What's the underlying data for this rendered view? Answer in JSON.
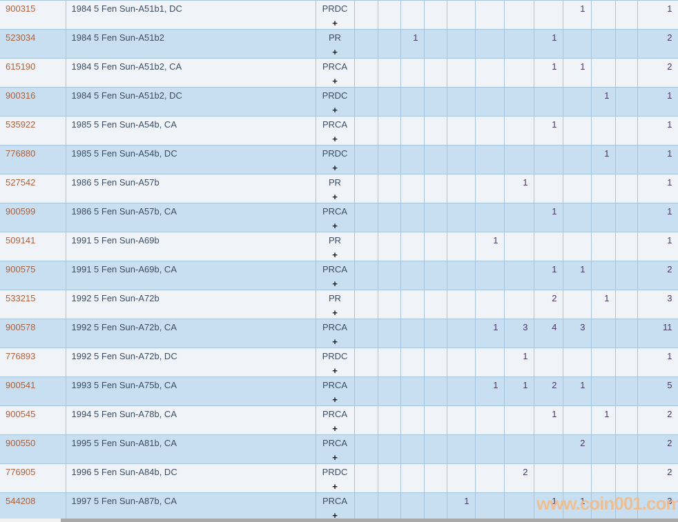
{
  "table": {
    "plus_label": "+",
    "rows": [
      {
        "id": "900315",
        "desc": "1984 5 Fen Sun-A51b1, DC",
        "grade": "PRDC",
        "cells": [
          "",
          "",
          "",
          "",
          "",
          "",
          "",
          "",
          "1",
          "",
          ""
        ],
        "total": "1"
      },
      {
        "id": "523034",
        "desc": "1984 5 Fen Sun-A51b2",
        "grade": "PR",
        "cells": [
          "",
          "",
          "1",
          "",
          "",
          "",
          "",
          "1",
          "",
          "",
          ""
        ],
        "total": "2"
      },
      {
        "id": "615190",
        "desc": "1984 5 Fen Sun-A51b2, CA",
        "grade": "PRCA",
        "cells": [
          "",
          "",
          "",
          "",
          "",
          "",
          "",
          "1",
          "1",
          "",
          ""
        ],
        "total": "2"
      },
      {
        "id": "900316",
        "desc": "1984 5 Fen Sun-A51b2, DC",
        "grade": "PRDC",
        "cells": [
          "",
          "",
          "",
          "",
          "",
          "",
          "",
          "",
          "",
          "1",
          ""
        ],
        "total": "1"
      },
      {
        "id": "535922",
        "desc": "1985 5 Fen Sun-A54b, CA",
        "grade": "PRCA",
        "cells": [
          "",
          "",
          "",
          "",
          "",
          "",
          "",
          "1",
          "",
          "",
          ""
        ],
        "total": "1"
      },
      {
        "id": "776880",
        "desc": "1985 5 Fen Sun-A54b, DC",
        "grade": "PRDC",
        "cells": [
          "",
          "",
          "",
          "",
          "",
          "",
          "",
          "",
          "",
          "1",
          ""
        ],
        "total": "1"
      },
      {
        "id": "527542",
        "desc": "1986 5 Fen Sun-A57b",
        "grade": "PR",
        "cells": [
          "",
          "",
          "",
          "",
          "",
          "",
          "1",
          "",
          "",
          "",
          ""
        ],
        "total": "1"
      },
      {
        "id": "900599",
        "desc": "1986 5 Fen Sun-A57b, CA",
        "grade": "PRCA",
        "cells": [
          "",
          "",
          "",
          "",
          "",
          "",
          "",
          "1",
          "",
          "",
          ""
        ],
        "total": "1"
      },
      {
        "id": "509141",
        "desc": "1991 5 Fen Sun-A69b",
        "grade": "PR",
        "cells": [
          "",
          "",
          "",
          "",
          "",
          "1",
          "",
          "",
          "",
          "",
          ""
        ],
        "total": "1"
      },
      {
        "id": "900575",
        "desc": "1991 5 Fen Sun-A69b, CA",
        "grade": "PRCA",
        "cells": [
          "",
          "",
          "",
          "",
          "",
          "",
          "",
          "1",
          "1",
          "",
          ""
        ],
        "total": "2"
      },
      {
        "id": "533215",
        "desc": "1992 5 Fen Sun-A72b",
        "grade": "PR",
        "cells": [
          "",
          "",
          "",
          "",
          "",
          "",
          "",
          "2",
          "",
          "1",
          ""
        ],
        "total": "3"
      },
      {
        "id": "900578",
        "desc": "1992 5 Fen Sun-A72b, CA",
        "grade": "PRCA",
        "cells": [
          "",
          "",
          "",
          "",
          "",
          "1",
          "3",
          "4",
          "3",
          "",
          ""
        ],
        "total": "11"
      },
      {
        "id": "776893",
        "desc": "1992 5 Fen Sun-A72b, DC",
        "grade": "PRDC",
        "cells": [
          "",
          "",
          "",
          "",
          "",
          "",
          "1",
          "",
          "",
          "",
          ""
        ],
        "total": "1"
      },
      {
        "id": "900541",
        "desc": "1993 5 Fen Sun-A75b, CA",
        "grade": "PRCA",
        "cells": [
          "",
          "",
          "",
          "",
          "",
          "1",
          "1",
          "2",
          "1",
          "",
          ""
        ],
        "total": "5"
      },
      {
        "id": "900545",
        "desc": "1994 5 Fen Sun-A78b, CA",
        "grade": "PRCA",
        "cells": [
          "",
          "",
          "",
          "",
          "",
          "",
          "",
          "1",
          "",
          "1",
          ""
        ],
        "total": "2"
      },
      {
        "id": "900550",
        "desc": "1995 5 Fen Sun-A81b, CA",
        "grade": "PRCA",
        "cells": [
          "",
          "",
          "",
          "",
          "",
          "",
          "",
          "",
          "2",
          "",
          ""
        ],
        "total": "2"
      },
      {
        "id": "776905",
        "desc": "1996 5 Fen Sun-A84b, DC",
        "grade": "PRDC",
        "cells": [
          "",
          "",
          "",
          "",
          "",
          "",
          "2",
          "",
          "",
          "",
          ""
        ],
        "total": "2"
      },
      {
        "id": "544208",
        "desc": "1997 5 Fen Sun-A87b, CA",
        "grade": "PRCA",
        "cells": [
          "",
          "",
          "",
          "",
          "1",
          "",
          "",
          "1",
          "1",
          "",
          ""
        ],
        "total": "3"
      }
    ]
  },
  "watermark": {
    "text": "www.coin001.com"
  },
  "colors": {
    "row_light": "#f0f4f9",
    "row_blue": "#c8def1",
    "grid_border": "#a7c4dd",
    "id_link": "#ad613c",
    "description_text": "#3c4d63",
    "count_text": "#4a3566",
    "watermark": "#f2bd86"
  }
}
